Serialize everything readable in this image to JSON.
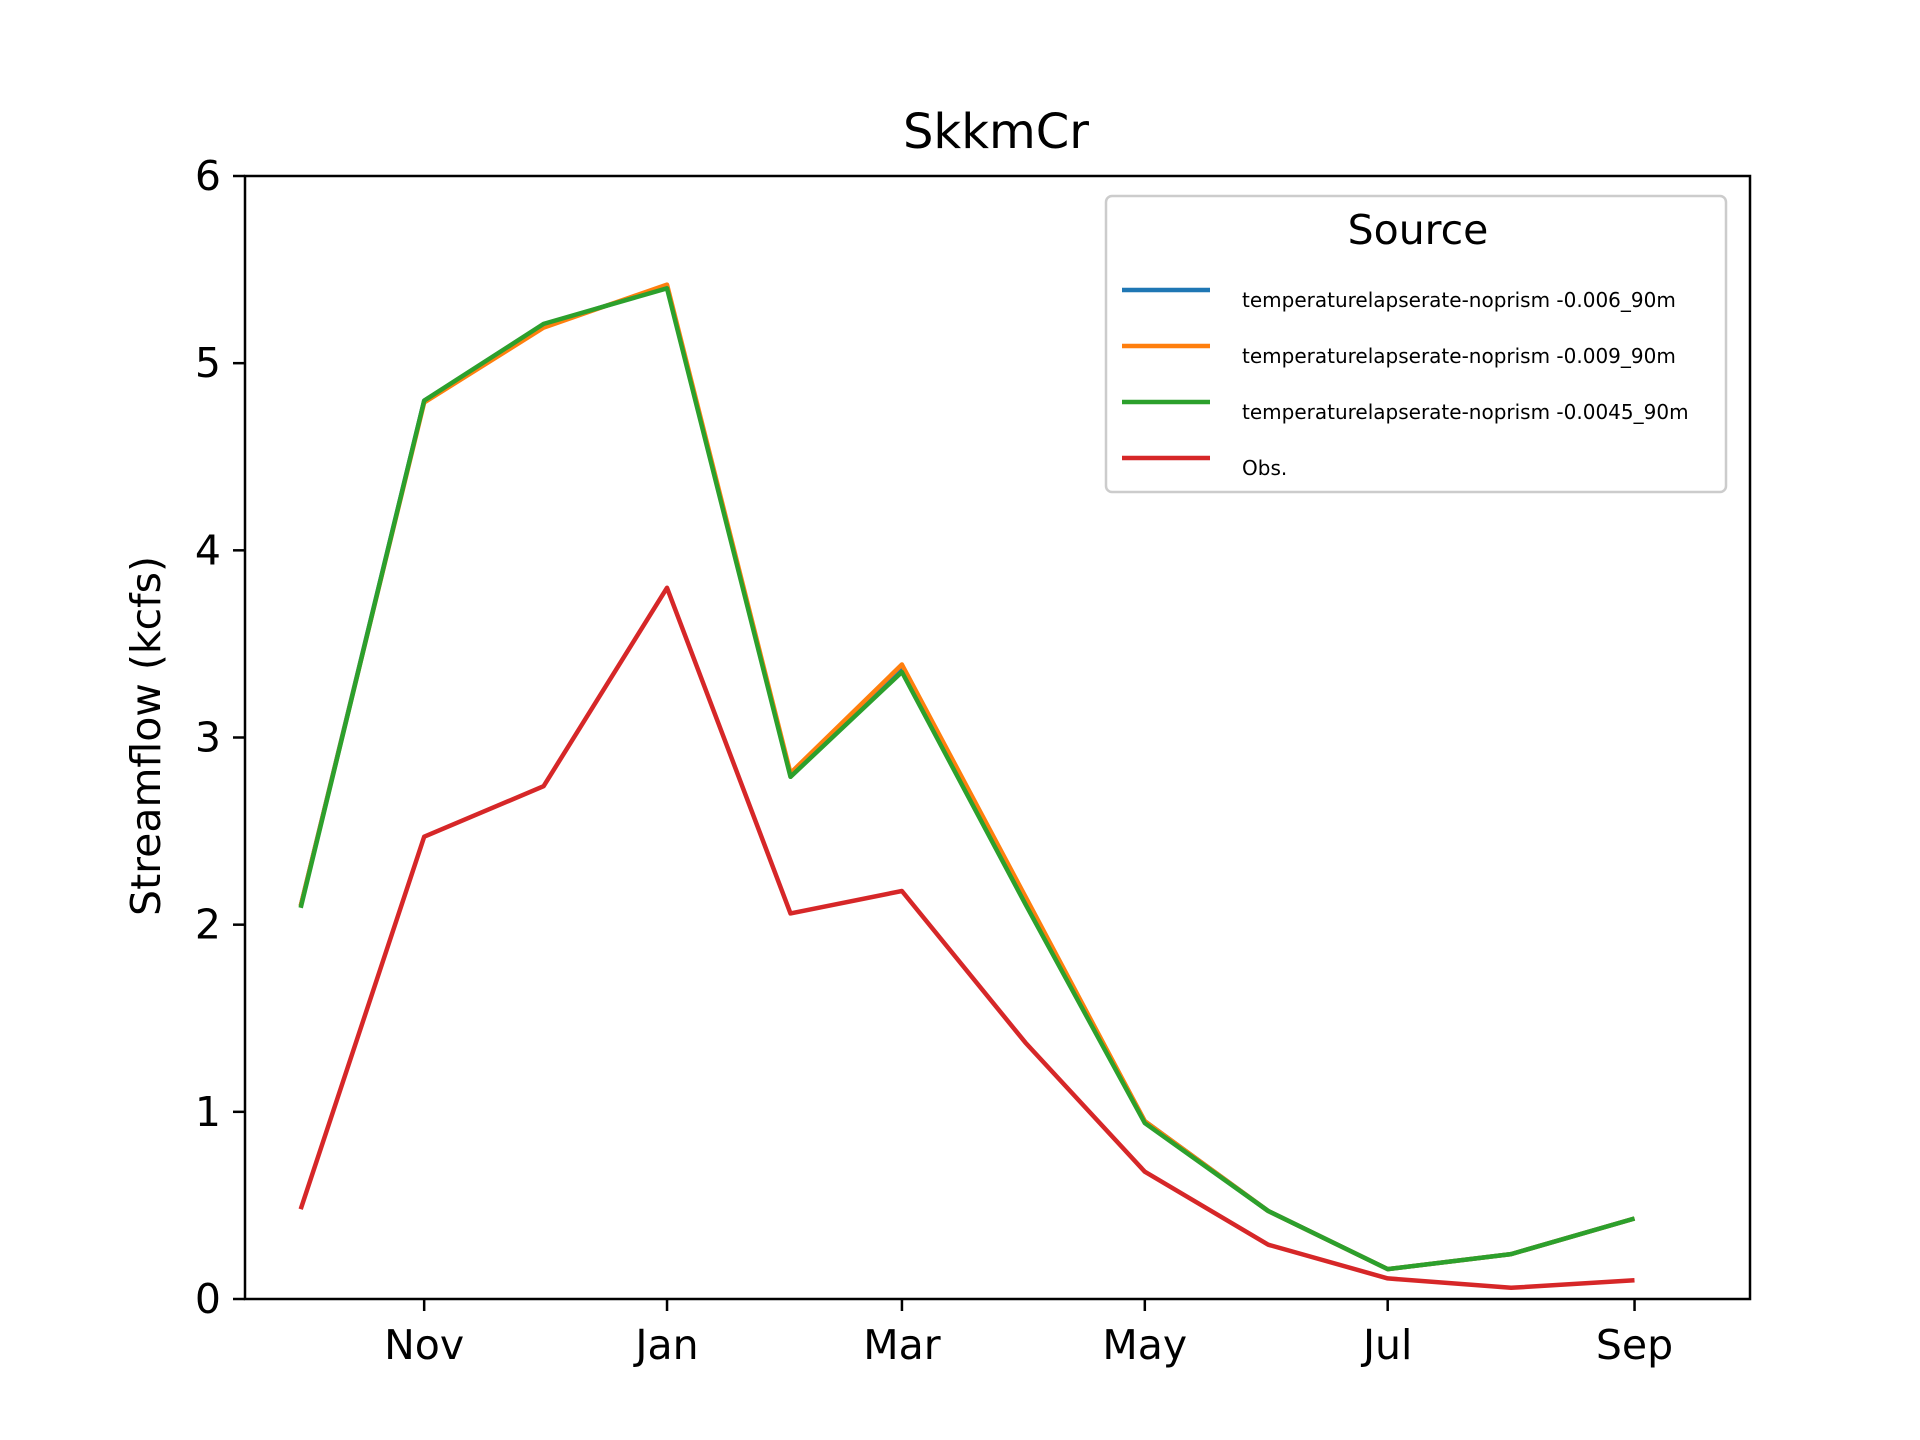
{
  "chart_data": {
    "type": "line",
    "title": "SkkmCr",
    "xlabel": "",
    "ylabel": "Streamflow (kcfs)",
    "ylim": [
      0,
      6
    ],
    "yticks": [
      0,
      1,
      2,
      3,
      4,
      5,
      6
    ],
    "xlim": [
      "2000-09-17",
      "2001-09-30"
    ],
    "xticks": [
      {
        "date": "2000-11-01",
        "label": "Nov"
      },
      {
        "date": "2001-01-01",
        "label": "Jan"
      },
      {
        "date": "2001-03-01",
        "label": "Mar"
      },
      {
        "date": "2001-05-01",
        "label": "May"
      },
      {
        "date": "2001-07-01",
        "label": "Jul"
      },
      {
        "date": "2001-09-01",
        "label": "Sep"
      }
    ],
    "x": [
      "2000-10-01",
      "2000-11-01",
      "2000-12-01",
      "2001-01-01",
      "2001-02-01",
      "2001-03-01",
      "2001-04-01",
      "2001-05-01",
      "2001-06-01",
      "2001-07-01",
      "2001-08-01",
      "2001-09-01"
    ],
    "grid": false,
    "legend": {
      "title": "Source",
      "position": "top-right"
    },
    "series": [
      {
        "name": "temperaturelapserate-noprism -0.006_90m",
        "color": "#1f77b4",
        "values": [
          2.1,
          4.8,
          5.2,
          5.41,
          2.8,
          3.37,
          2.13,
          0.95,
          0.47,
          0.16,
          0.24,
          0.43
        ]
      },
      {
        "name": "temperaturelapserate-noprism -0.009_90m",
        "color": "#ff7f0e",
        "values": [
          2.1,
          4.79,
          5.19,
          5.42,
          2.81,
          3.39,
          2.15,
          0.95,
          0.47,
          0.16,
          0.24,
          0.43
        ]
      },
      {
        "name": "temperaturelapserate-noprism -0.0045_90m",
        "color": "#2ca02c",
        "values": [
          2.09,
          4.8,
          5.21,
          5.4,
          2.79,
          3.35,
          2.11,
          0.94,
          0.47,
          0.16,
          0.24,
          0.43
        ]
      },
      {
        "name": "Obs.",
        "color": "#d62728",
        "values": [
          0.48,
          2.47,
          2.74,
          3.8,
          2.06,
          2.18,
          1.37,
          0.68,
          0.29,
          0.11,
          0.06,
          0.1
        ]
      }
    ]
  }
}
